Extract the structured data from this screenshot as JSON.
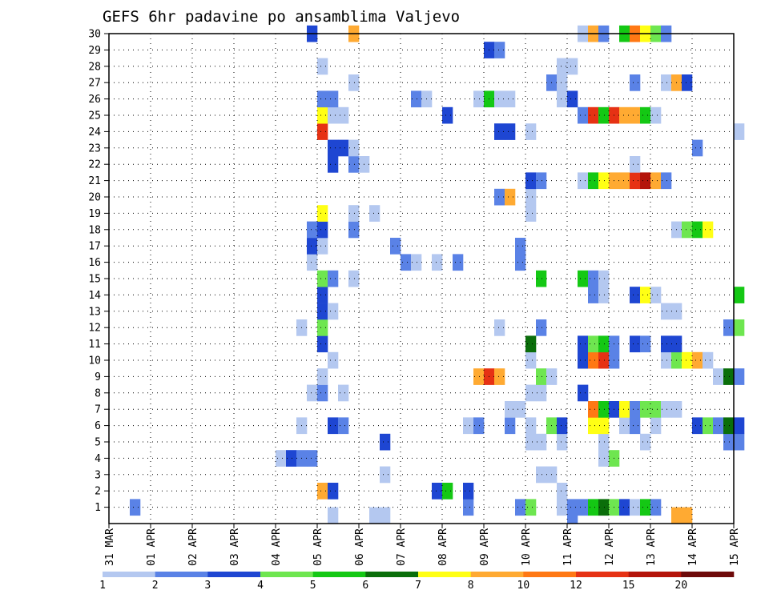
{
  "chart_data": {
    "type": "heatmap",
    "title": "GEFS 6hr padavine po ansamblima Valjevo",
    "y_ticks": [
      "1",
      "2",
      "3",
      "4",
      "5",
      "6",
      "7",
      "8",
      "9",
      "10",
      "11",
      "12",
      "13",
      "14",
      "15",
      "16",
      "17",
      "18",
      "19",
      "20",
      "21",
      "22",
      "23",
      "24",
      "25",
      "26",
      "27",
      "28",
      "29",
      "30"
    ],
    "x_ticks": [
      "31 MAR",
      "01 APR",
      "02 APR",
      "03 APR",
      "04 APR",
      "05 APR",
      "06 APR",
      "07 APR",
      "08 APR",
      "09 APR",
      "10 APR",
      "11 APR",
      "12 APR",
      "13 APR",
      "14 APR",
      "15 APR"
    ],
    "x_range_days": [
      0,
      15
    ],
    "y_range": [
      0,
      30
    ],
    "step_days": 0.25,
    "grid": true,
    "levels": [
      "1",
      "2",
      "3",
      "4",
      "5",
      "6",
      "7",
      "8",
      "10",
      "12",
      "15",
      "20"
    ],
    "colors": [
      "#b4c8f0",
      "#5a82e6",
      "#1e46d2",
      "#6ee650",
      "#14c814",
      "#0a6e0a",
      "#ffff14",
      "#ffaa32",
      "#ff7814",
      "#e63214",
      "#b4140a",
      "#6e0a0a"
    ],
    "cells": [
      [
        1,
        2,
        2
      ],
      [
        1,
        2,
        34
      ],
      [
        1,
        2,
        39
      ],
      [
        1,
        4,
        40
      ],
      [
        1,
        1,
        43
      ],
      [
        1,
        2,
        44
      ],
      [
        1,
        2,
        45
      ],
      [
        1,
        5,
        46
      ],
      [
        1,
        6,
        47
      ],
      [
        1,
        4,
        48
      ],
      [
        1,
        3,
        49
      ],
      [
        1,
        1,
        50
      ],
      [
        1,
        5,
        51
      ],
      [
        1,
        2,
        52
      ],
      [
        2,
        8,
        20
      ],
      [
        2,
        3,
        21
      ],
      [
        2,
        3,
        31
      ],
      [
        2,
        5,
        32
      ],
      [
        2,
        3,
        34
      ],
      [
        2,
        1,
        43
      ],
      [
        3,
        1,
        26
      ],
      [
        3,
        1,
        41
      ],
      [
        3,
        1,
        42
      ],
      [
        4,
        1,
        16
      ],
      [
        4,
        3,
        17
      ],
      [
        4,
        2,
        18
      ],
      [
        4,
        2,
        19
      ],
      [
        4,
        1,
        47
      ],
      [
        4,
        4,
        48
      ],
      [
        5,
        3,
        26
      ],
      [
        5,
        1,
        40
      ],
      [
        5,
        1,
        41
      ],
      [
        5,
        1,
        43
      ],
      [
        5,
        1,
        47
      ],
      [
        5,
        1,
        51
      ],
      [
        5,
        2,
        59
      ],
      [
        5,
        2,
        60
      ],
      [
        6,
        3,
        21
      ],
      [
        6,
        2,
        22
      ],
      [
        6,
        1,
        18
      ],
      [
        6,
        1,
        34
      ],
      [
        6,
        2,
        35
      ],
      [
        6,
        2,
        38
      ],
      [
        6,
        1,
        40
      ],
      [
        6,
        4,
        42
      ],
      [
        6,
        3,
        43
      ],
      [
        6,
        7,
        46
      ],
      [
        6,
        7,
        47
      ],
      [
        6,
        1,
        49
      ],
      [
        6,
        2,
        50
      ],
      [
        6,
        1,
        52
      ],
      [
        6,
        3,
        56
      ],
      [
        6,
        4,
        57
      ],
      [
        6,
        2,
        58
      ],
      [
        6,
        6,
        59
      ],
      [
        6,
        3,
        60
      ],
      [
        7,
        1,
        38
      ],
      [
        7,
        1,
        39
      ],
      [
        7,
        9,
        46
      ],
      [
        7,
        5,
        47
      ],
      [
        7,
        3,
        48
      ],
      [
        7,
        7,
        49
      ],
      [
        7,
        2,
        50
      ],
      [
        7,
        4,
        51
      ],
      [
        7,
        4,
        52
      ],
      [
        7,
        1,
        53
      ],
      [
        7,
        1,
        54
      ],
      [
        8,
        1,
        19
      ],
      [
        8,
        2,
        20
      ],
      [
        8,
        1,
        22
      ],
      [
        8,
        1,
        40
      ],
      [
        8,
        1,
        41
      ],
      [
        8,
        3,
        45
      ],
      [
        9,
        1,
        20
      ],
      [
        9,
        8,
        35
      ],
      [
        9,
        10,
        36
      ],
      [
        9,
        8,
        37
      ],
      [
        9,
        4,
        41
      ],
      [
        9,
        1,
        42
      ],
      [
        9,
        1,
        58
      ],
      [
        9,
        6,
        59
      ],
      [
        9,
        2,
        60
      ],
      [
        10,
        1,
        21
      ],
      [
        10,
        1,
        40
      ],
      [
        10,
        3,
        45
      ],
      [
        10,
        9,
        46
      ],
      [
        10,
        10,
        47
      ],
      [
        10,
        2,
        48
      ],
      [
        10,
        1,
        53
      ],
      [
        10,
        4,
        54
      ],
      [
        10,
        7,
        55
      ],
      [
        10,
        8,
        56
      ],
      [
        10,
        1,
        57
      ],
      [
        11,
        3,
        20
      ],
      [
        11,
        6,
        40
      ],
      [
        11,
        3,
        45
      ],
      [
        11,
        4,
        46
      ],
      [
        11,
        5,
        47
      ],
      [
        11,
        2,
        48
      ],
      [
        11,
        3,
        50
      ],
      [
        11,
        2,
        51
      ],
      [
        11,
        3,
        53
      ],
      [
        11,
        3,
        54
      ],
      [
        12,
        4,
        20
      ],
      [
        12,
        1,
        18
      ],
      [
        12,
        1,
        37
      ],
      [
        12,
        2,
        41
      ],
      [
        12,
        2,
        59
      ],
      [
        12,
        4,
        60
      ],
      [
        13,
        3,
        20
      ],
      [
        13,
        1,
        21
      ],
      [
        13,
        1,
        53
      ],
      [
        13,
        1,
        54
      ],
      [
        14,
        3,
        20
      ],
      [
        14,
        2,
        46
      ],
      [
        14,
        1,
        47
      ],
      [
        14,
        3,
        50
      ],
      [
        14,
        7,
        51
      ],
      [
        14,
        1,
        52
      ],
      [
        14,
        5,
        60
      ],
      [
        15,
        4,
        20
      ],
      [
        15,
        2,
        21
      ],
      [
        15,
        1,
        23
      ],
      [
        15,
        5,
        41
      ],
      [
        15,
        5,
        45
      ],
      [
        15,
        2,
        46
      ],
      [
        15,
        1,
        47
      ],
      [
        16,
        1,
        19
      ],
      [
        16,
        2,
        28
      ],
      [
        16,
        1,
        29
      ],
      [
        16,
        1,
        31
      ],
      [
        16,
        2,
        33
      ],
      [
        16,
        2,
        39
      ],
      [
        17,
        3,
        19
      ],
      [
        17,
        1,
        20
      ],
      [
        17,
        2,
        27
      ],
      [
        17,
        2,
        39
      ],
      [
        18,
        2,
        19
      ],
      [
        18,
        3,
        20
      ],
      [
        18,
        2,
        23
      ],
      [
        18,
        1,
        54
      ],
      [
        18,
        4,
        55
      ],
      [
        18,
        5,
        56
      ],
      [
        18,
        7,
        57
      ],
      [
        19,
        7,
        20
      ],
      [
        19,
        1,
        23
      ],
      [
        19,
        1,
        25
      ],
      [
        19,
        1,
        40
      ],
      [
        20,
        2,
        37
      ],
      [
        20,
        8,
        38
      ],
      [
        20,
        1,
        40
      ],
      [
        21,
        3,
        40
      ],
      [
        21,
        2,
        41
      ],
      [
        21,
        1,
        45
      ],
      [
        21,
        5,
        46
      ],
      [
        21,
        7,
        47
      ],
      [
        21,
        8,
        48
      ],
      [
        21,
        8,
        49
      ],
      [
        21,
        10,
        50
      ],
      [
        21,
        11,
        51
      ],
      [
        21,
        8,
        52
      ],
      [
        21,
        2,
        53
      ],
      [
        22,
        3,
        21
      ],
      [
        22,
        2,
        23
      ],
      [
        22,
        1,
        24
      ],
      [
        22,
        1,
        50
      ],
      [
        23,
        3,
        21
      ],
      [
        23,
        3,
        22
      ],
      [
        23,
        1,
        23
      ],
      [
        23,
        2,
        56
      ],
      [
        24,
        10,
        20
      ],
      [
        24,
        3,
        37
      ],
      [
        24,
        3,
        38
      ],
      [
        24,
        1,
        40
      ],
      [
        24,
        1,
        60
      ],
      [
        25,
        7,
        20
      ],
      [
        25,
        1,
        21
      ],
      [
        25,
        1,
        22
      ],
      [
        25,
        3,
        32
      ],
      [
        25,
        2,
        45
      ],
      [
        25,
        10,
        46
      ],
      [
        25,
        5,
        47
      ],
      [
        25,
        10,
        48
      ],
      [
        25,
        8,
        49
      ],
      [
        25,
        8,
        50
      ],
      [
        25,
        5,
        51
      ],
      [
        25,
        1,
        52
      ],
      [
        26,
        2,
        20
      ],
      [
        26,
        2,
        21
      ],
      [
        26,
        2,
        29
      ],
      [
        26,
        1,
        30
      ],
      [
        26,
        1,
        35
      ],
      [
        26,
        5,
        36
      ],
      [
        26,
        1,
        37
      ],
      [
        26,
        1,
        38
      ],
      [
        26,
        1,
        43
      ],
      [
        26,
        3,
        44
      ],
      [
        27,
        1,
        23
      ],
      [
        27,
        2,
        42
      ],
      [
        27,
        1,
        43
      ],
      [
        27,
        2,
        50
      ],
      [
        27,
        1,
        53
      ],
      [
        27,
        8,
        54
      ],
      [
        27,
        3,
        55
      ],
      [
        28,
        1,
        20
      ],
      [
        28,
        1,
        43
      ],
      [
        28,
        1,
        44
      ],
      [
        29,
        3,
        36
      ],
      [
        29,
        2,
        37
      ],
      [
        30,
        3,
        19
      ],
      [
        30,
        8,
        23
      ],
      [
        30,
        1,
        45
      ],
      [
        30,
        8,
        46
      ],
      [
        30,
        2,
        47
      ],
      [
        30,
        5,
        49
      ],
      [
        30,
        9,
        50
      ],
      [
        30,
        7,
        51
      ],
      [
        30,
        4,
        52
      ],
      [
        30,
        2,
        53
      ],
      [
        0.5,
        1,
        21
      ],
      [
        0.5,
        1,
        25
      ],
      [
        0.5,
        1,
        26
      ],
      [
        0.5,
        2,
        44
      ],
      [
        0.5,
        8,
        54
      ],
      [
        0.5,
        8,
        55
      ]
    ]
  }
}
